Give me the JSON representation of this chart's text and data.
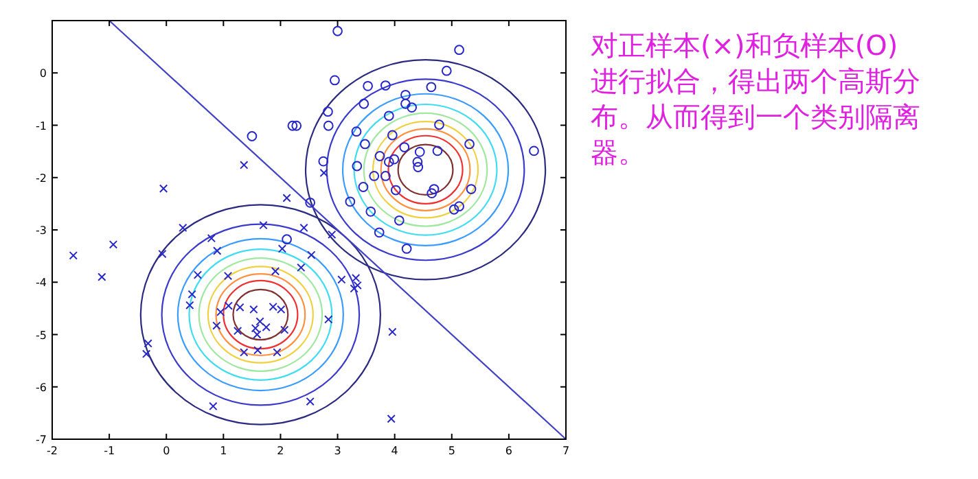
{
  "chart_data": {
    "type": "scatter",
    "xlim": [
      -2,
      7
    ],
    "ylim": [
      -7,
      1
    ],
    "xticks": [
      -2,
      -1,
      0,
      1,
      2,
      3,
      4,
      5,
      6,
      7
    ],
    "yticks": [
      -7,
      -6,
      -5,
      -4,
      -3,
      -2,
      -1,
      0
    ],
    "grid": false,
    "annotations": [
      "对正样本(×)和负样本(O)进行拟合，得出两个高斯分布。从而得到一个类别隔离器。"
    ],
    "series": [
      {
        "type": "line",
        "color": "#4040c8",
        "x": [
          -1,
          7
        ],
        "values": [
          1,
          -7
        ]
      },
      {
        "type": "scatter",
        "marker": "cross",
        "color": "#2828c8",
        "x": [
          1.36,
          -0.05,
          2.11,
          0.29,
          1.7,
          2.76,
          2.9,
          -1.63,
          -0.93,
          -1.13,
          -0.07,
          0.79,
          0.89,
          2.03,
          2.41,
          2.54,
          2.36,
          0.55,
          1.08,
          1.91,
          0.45,
          0.41,
          1.09,
          0.95,
          1.29,
          1.53,
          1.87,
          2.01,
          0.88,
          1.64,
          1.56,
          1.75,
          1.59,
          1.25,
          2.07,
          -0.32,
          -0.35,
          1.36,
          1.6,
          1.94,
          0.82,
          2.52,
          3.07,
          3.32,
          3.29,
          3.35,
          2.84,
          3.96,
          3.94
        ],
        "values": [
          -1.76,
          -2.21,
          -2.39,
          -2.96,
          -2.91,
          -1.91,
          -3.09,
          -3.49,
          -3.28,
          -3.9,
          -3.46,
          -3.16,
          -3.4,
          -3.36,
          -2.96,
          -3.48,
          -3.72,
          -3.86,
          -3.88,
          -3.79,
          -4.23,
          -4.44,
          -4.45,
          -4.57,
          -4.48,
          -4.52,
          -4.47,
          -4.52,
          -4.83,
          -4.75,
          -4.88,
          -4.86,
          -5.0,
          -4.93,
          -4.91,
          -5.17,
          -5.37,
          -5.34,
          -5.3,
          -5.34,
          -6.37,
          -6.28,
          -3.95,
          -3.92,
          -4.12,
          -4.06,
          -4.71,
          -4.95,
          -6.61
        ]
      },
      {
        "type": "scatter",
        "marker": "circle",
        "color": "#2828c8",
        "x": [
          1.5,
          2.21,
          2.28,
          2.11,
          3.0,
          5.13,
          4.91,
          2.95,
          3.53,
          3.84,
          4.64,
          4.19,
          3.46,
          4.19,
          4.3,
          2.83,
          3.9,
          2.84,
          4.78,
          3.33,
          3.96,
          3.48,
          5.31,
          6.44,
          4.17,
          4.44,
          4.75,
          2.75,
          3.74,
          3.9,
          3.99,
          4.4,
          4.41,
          3.34,
          3.64,
          3.84,
          3.45,
          4.02,
          4.69,
          4.65,
          5.34,
          3.22,
          2.52,
          3.58,
          5.04,
          5.13,
          4.08,
          3.73,
          4.21
        ],
        "values": [
          -1.21,
          -1.01,
          -1.01,
          -3.18,
          0.8,
          0.44,
          0.04,
          -0.14,
          -0.25,
          -0.24,
          -0.27,
          -0.42,
          -0.59,
          -0.59,
          -0.66,
          -0.74,
          -0.82,
          -1.01,
          -0.99,
          -1.12,
          -1.19,
          -1.36,
          -1.36,
          -1.49,
          -1.42,
          -1.51,
          -1.49,
          -1.69,
          -1.59,
          -1.7,
          -1.65,
          -1.7,
          -1.8,
          -1.78,
          -1.97,
          -1.97,
          -2.18,
          -2.24,
          -2.22,
          -2.3,
          -2.22,
          -2.46,
          -2.48,
          -2.65,
          -2.61,
          -2.55,
          -2.82,
          -3.05,
          -3.36
        ]
      }
    ]
  }
}
